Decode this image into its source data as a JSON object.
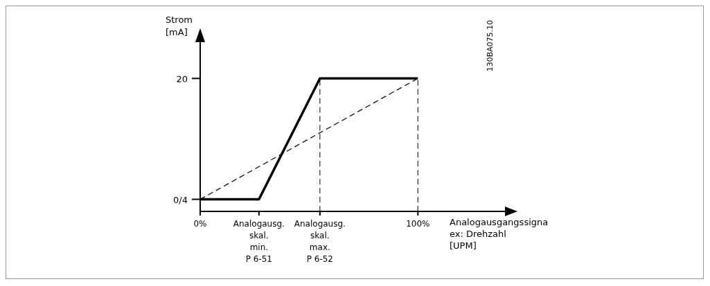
{
  "chart_data": {
    "type": "line",
    "ylabel": "Strom\n[mA]",
    "xlabel": "Analogausgangssigna\nex: Drehzahl\n[UPM]",
    "xlim": [
      0,
      140
    ],
    "ylim": [
      -2,
      26
    ],
    "xticks": [
      {
        "value": 0,
        "label": "0%"
      },
      {
        "value": 27,
        "label": "Analogausg.\nskal.\nmin.\nP 6-51"
      },
      {
        "value": 55,
        "label": "Analogausg.\nskal.\nmax.\nP 6-52"
      },
      {
        "value": 100,
        "label": "100%"
      }
    ],
    "yticks": [
      {
        "value": 0,
        "label": "0/4"
      },
      20
    ],
    "series": [
      {
        "color": "#000000",
        "line_style": "solid",
        "x": [
          0,
          27,
          55,
          100
        ],
        "values": [
          0,
          0,
          20,
          20
        ]
      },
      {
        "color": "#000000",
        "line_style": "dashed",
        "x": [
          0,
          100
        ],
        "values": [
          0,
          20
        ]
      }
    ],
    "ref_lines": [
      {
        "axis": "x",
        "value": 55,
        "line_style": "dashed",
        "color": "#000000"
      },
      {
        "axis": "x",
        "value": 100,
        "line_style": "dashed",
        "color": "#000000"
      }
    ],
    "annotations": [
      "130BA075.10"
    ],
    "marker": "none",
    "grid": false,
    "legend": false
  }
}
